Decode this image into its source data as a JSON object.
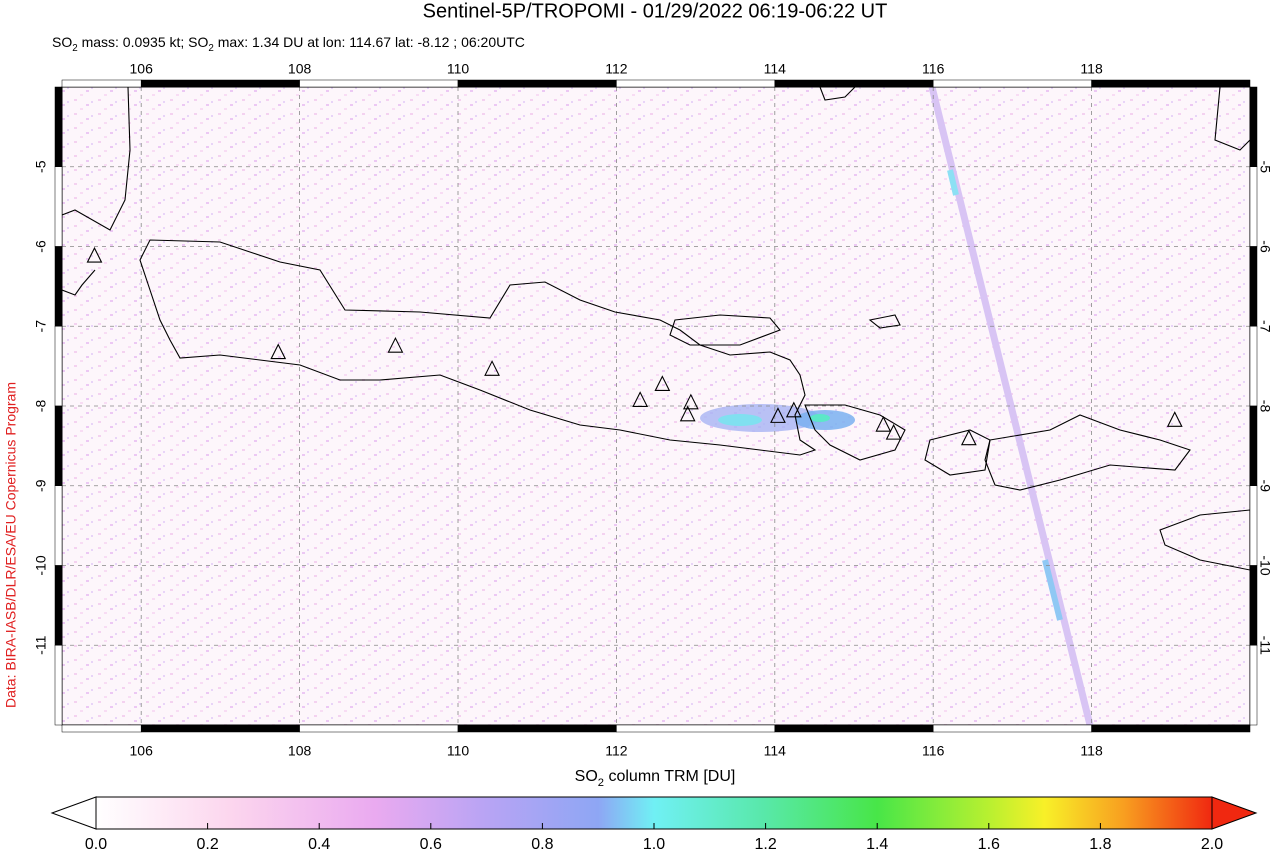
{
  "chart_data": {
    "type": "map",
    "title": "Sentinel-5P/TROPOMI - 01/29/2022 06:19-06:22 UT",
    "subtitle": [
      "SO",
      "2",
      " mass: 0.0935 kt; SO",
      "2",
      " max: 1.34 DU at lon: 114.67 lat: -8.12 ; 06:20UTC"
    ],
    "credit": "Data: BIRA-IASB/DLR/ESA/EU Copernicus Program",
    "xlim": [
      105,
      120
    ],
    "ylim": [
      -12,
      -4
    ],
    "xticks": [
      106,
      108,
      110,
      112,
      114,
      116,
      118
    ],
    "yticks": [
      -5,
      -6,
      -7,
      -8,
      -9,
      -10,
      -11
    ],
    "grid": true,
    "volcanoes": {
      "lon": [
        105.41,
        107.73,
        109.21,
        110.43,
        112.3,
        112.58,
        112.94,
        112.9,
        114.04,
        114.24,
        115.37,
        115.5,
        116.45,
        119.05
      ],
      "lat": [
        -6.12,
        -7.33,
        -7.25,
        -7.54,
        -7.93,
        -7.73,
        -7.96,
        -8.11,
        -8.13,
        -8.06,
        -8.24,
        -8.34,
        -8.41,
        -8.18
      ]
    },
    "colorbar": {
      "label": [
        "SO",
        "2",
        " column TRM [DU]"
      ],
      "clim": [
        0,
        2
      ],
      "ticks": [
        {
          "value": 0,
          "label": "0.0"
        },
        {
          "value": 0.2,
          "label": "0.2"
        },
        {
          "value": 0.4,
          "label": "0.4"
        },
        {
          "value": 0.6,
          "label": "0.6"
        },
        {
          "value": 0.8,
          "label": "0.8"
        },
        {
          "value": 1,
          "label": "1.0"
        },
        {
          "value": 1.2,
          "label": "1.2"
        },
        {
          "value": 1.4,
          "label": "1.4"
        },
        {
          "value": 1.6,
          "label": "1.6"
        },
        {
          "value": 1.8,
          "label": "1.8"
        },
        {
          "value": 2,
          "label": "2.0"
        }
      ]
    }
  }
}
